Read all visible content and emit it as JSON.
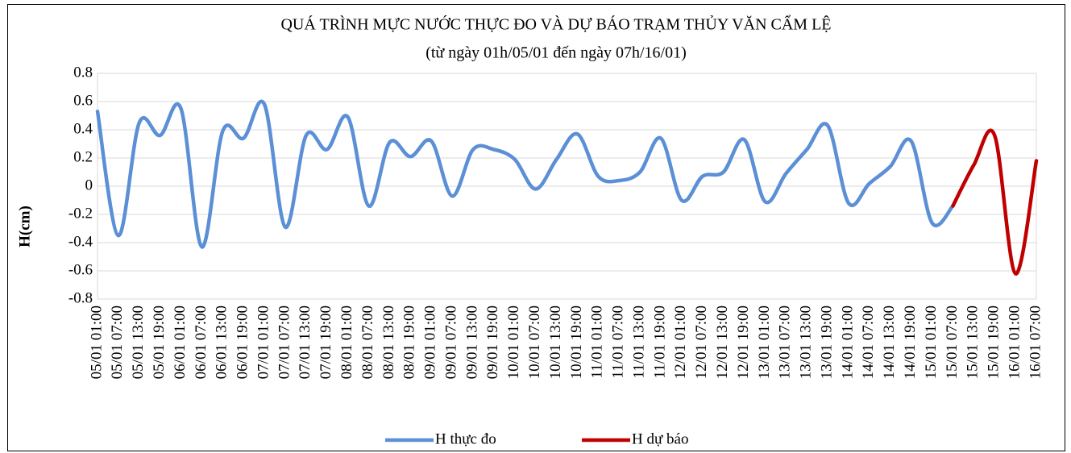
{
  "chart_data": {
    "type": "line",
    "title": "QUÁ TRÌNH MỰC NƯỚC THỰC ĐO VÀ DỰ BÁO TRẠM THỦY VĂN CẨM LỆ",
    "subtitle": "(từ ngày 01h/05/01  đến ngày 07h/16/01)",
    "y_label": "H(cm)",
    "categories": [
      "05/01 01:00",
      "05/01 07:00",
      "05/01 13:00",
      "05/01 19:00",
      "06/01 01:00",
      "06/01 07:00",
      "06/01 13:00",
      "06/01 19:00",
      "07/01 01:00",
      "07/01 07:00",
      "07/01 13:00",
      "07/01 19:00",
      "08/01 01:00",
      "08/01 07:00",
      "08/01 13:00",
      "08/01 19:00",
      "09/01 01:00",
      "09/01 07:00",
      "09/01 13:00",
      "09/01 19:00",
      "10/01 01:00",
      "10/01 07:00",
      "10/01 13:00",
      "10/01 19:00",
      "11/01 01:00",
      "11/01 07:00",
      "11/01 13:00",
      "11/01 19:00",
      "12/01 01:00",
      "12/01 07:00",
      "12/01 13:00",
      "12/01 19:00",
      "13/01 01:00",
      "13/01 07:00",
      "13/01 13:00",
      "13/01 19:00",
      "14/01 01:00",
      "14/01 07:00",
      "14/01 13:00",
      "14/01 19:00",
      "15/01 01:00",
      "15/01 07:00",
      "15/01 13:00",
      "15/01 19:00",
      "16/01 01:00",
      "16/01 07:00"
    ],
    "series": [
      {
        "name": "H thực đo",
        "color": "#5b8fd6",
        "values": [
          0.53,
          -0.35,
          0.45,
          0.36,
          0.55,
          -0.43,
          0.39,
          0.34,
          0.58,
          -0.29,
          0.36,
          0.26,
          0.49,
          -0.14,
          0.31,
          0.21,
          0.32,
          -0.07,
          0.26,
          0.26,
          0.19,
          -0.02,
          0.19,
          0.37,
          0.07,
          0.04,
          0.1,
          0.34,
          -0.1,
          0.07,
          0.1,
          0.33,
          -0.11,
          0.09,
          0.26,
          0.43,
          -0.12,
          0.02,
          0.14,
          0.32,
          -0.26,
          -0.14,
          null,
          null,
          null,
          null
        ]
      },
      {
        "name": "H dự báo",
        "color": "#c00000",
        "values": [
          null,
          null,
          null,
          null,
          null,
          null,
          null,
          null,
          null,
          null,
          null,
          null,
          null,
          null,
          null,
          null,
          null,
          null,
          null,
          null,
          null,
          null,
          null,
          null,
          null,
          null,
          null,
          null,
          null,
          null,
          null,
          null,
          null,
          null,
          null,
          null,
          null,
          null,
          null,
          null,
          null,
          -0.14,
          0.15,
          0.36,
          -0.62,
          0.18
        ]
      }
    ],
    "ylim": [
      -0.8,
      0.8
    ],
    "yticks": [
      -0.8,
      -0.6,
      -0.4,
      -0.2,
      0,
      0.2,
      0.4,
      0.6,
      0.8
    ],
    "grid": true,
    "legend": "bottom"
  }
}
